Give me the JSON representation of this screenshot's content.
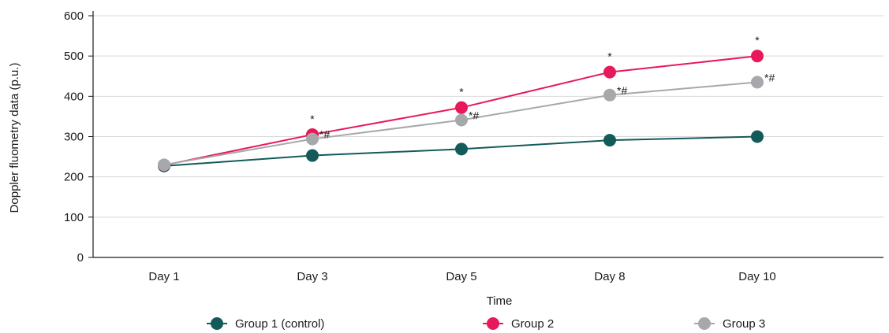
{
  "chart_data": {
    "type": "line",
    "title": "",
    "xlabel": "Time",
    "ylabel": "Doppler fluometry data (p.u.)",
    "categories": [
      "Day 1",
      "Day 3",
      "Day 5",
      "Day 8",
      "Day 10"
    ],
    "ylim": [
      0,
      600
    ],
    "yticks": [
      0,
      100,
      200,
      300,
      400,
      500,
      600
    ],
    "grid": "horizontal",
    "legend_position": "bottom",
    "series": [
      {
        "name": "Group 1 (control)",
        "color": "#145a5a",
        "values": [
          227,
          253,
          269,
          291,
          300
        ],
        "annotations": [
          "",
          "",
          "",
          "",
          ""
        ]
      },
      {
        "name": "Group 2",
        "color": "#e8195a",
        "values": [
          229,
          305,
          372,
          460,
          500
        ],
        "annotations": [
          "",
          "*",
          "*",
          "*",
          "*"
        ]
      },
      {
        "name": "Group 3",
        "color": "#a7a8ac",
        "values": [
          230,
          294,
          341,
          403,
          435
        ],
        "annotations": [
          "",
          "*#",
          "*#",
          "*#",
          "*#"
        ]
      }
    ]
  }
}
